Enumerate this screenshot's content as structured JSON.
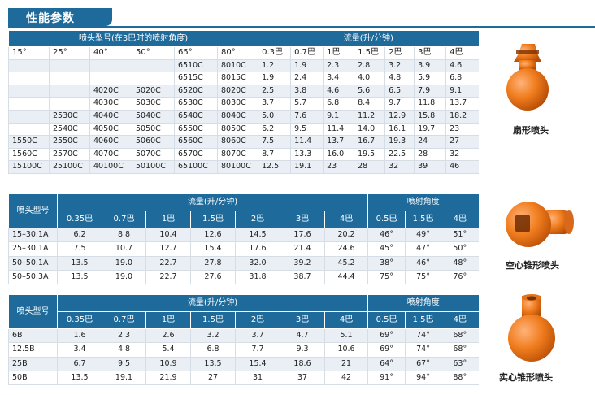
{
  "section_title": "性能参数",
  "table1": {
    "group_headers": [
      "喷头型号(在3巴时的喷射角度)",
      "流量(升/分钟)"
    ],
    "column_headers": [
      "15°",
      "25°",
      "40°",
      "50°",
      "65°",
      "80°",
      "0.3巴",
      "0.7巴",
      "1巴",
      "1.5巴",
      "2巴",
      "3巴",
      "4巴"
    ],
    "rows": [
      [
        "",
        "",
        "",
        "",
        "6510C",
        "8010C",
        "1.2",
        "1.9",
        "2.3",
        "2.8",
        "3.2",
        "3.9",
        "4.6"
      ],
      [
        "",
        "",
        "",
        "",
        "6515C",
        "8015C",
        "1.9",
        "2.4",
        "3.4",
        "4.0",
        "4.8",
        "5.9",
        "6.8"
      ],
      [
        "",
        "",
        "4020C",
        "5020C",
        "6520C",
        "8020C",
        "2.5",
        "3.8",
        "4.6",
        "5.6",
        "6.5",
        "7.9",
        "9.1"
      ],
      [
        "",
        "",
        "4030C",
        "5030C",
        "6530C",
        "8030C",
        "3.7",
        "5.7",
        "6.8",
        "8.4",
        "9.7",
        "11.8",
        "13.7"
      ],
      [
        "",
        "2530C",
        "4040C",
        "5040C",
        "6540C",
        "8040C",
        "5.0",
        "7.6",
        "9.1",
        "11.2",
        "12.9",
        "15.8",
        "18.2"
      ],
      [
        "",
        "2540C",
        "4050C",
        "5050C",
        "6550C",
        "8050C",
        "6.2",
        "9.5",
        "11.4",
        "14.0",
        "16.1",
        "19.7",
        "23"
      ],
      [
        "1550C",
        "2550C",
        "4060C",
        "5060C",
        "6560C",
        "8060C",
        "7.5",
        "11.4",
        "13.7",
        "16.7",
        "19.3",
        "24",
        "27"
      ],
      [
        "1560C",
        "2570C",
        "4070C",
        "5070C",
        "6570C",
        "8070C",
        "8.7",
        "13.3",
        "16.0",
        "19.5",
        "22.5",
        "28",
        "32"
      ],
      [
        "15100C",
        "25100C",
        "40100C",
        "50100C",
        "65100C",
        "80100C",
        "12.5",
        "19.1",
        "23",
        "28",
        "32",
        "39",
        "46"
      ]
    ]
  },
  "table2": {
    "model_header": "喷头型号",
    "flow_header": "流量(升/分钟)",
    "angle_header": "喷射角度",
    "flow_columns": [
      "0.35巴",
      "0.7巴",
      "1巴",
      "1.5巴",
      "2巴",
      "3巴",
      "4巴"
    ],
    "angle_columns": [
      "0.5巴",
      "1.5巴",
      "4巴"
    ],
    "rows": [
      [
        "15–30.1A",
        "6.2",
        "8.8",
        "10.4",
        "12.6",
        "14.5",
        "17.6",
        "20.2",
        "46°",
        "49°",
        "51°"
      ],
      [
        "25–30.1A",
        "7.5",
        "10.7",
        "12.7",
        "15.4",
        "17.6",
        "21.4",
        "24.6",
        "45°",
        "47°",
        "50°"
      ],
      [
        "50–50.1A",
        "13.5",
        "19.0",
        "22.7",
        "27.8",
        "32.0",
        "39.2",
        "45.2",
        "38°",
        "46°",
        "48°"
      ],
      [
        "50–50.3A",
        "13.5",
        "19.0",
        "22.7",
        "27.6",
        "31.8",
        "38.7",
        "44.4",
        "75°",
        "75°",
        "76°"
      ]
    ]
  },
  "table3": {
    "model_header": "喷头型号",
    "flow_header": "流量(升/分钟)",
    "angle_header": "喷射角度",
    "flow_columns": [
      "0.35巴",
      "0.7巴",
      "1巴",
      "1.5巴",
      "2巴",
      "3巴",
      "4巴"
    ],
    "angle_columns": [
      "0.5巴",
      "1.5巴",
      "4巴"
    ],
    "rows": [
      [
        "6B",
        "1.6",
        "2.3",
        "2.6",
        "3.2",
        "3.7",
        "4.7",
        "5.1",
        "69°",
        "74°",
        "68°"
      ],
      [
        "12.5B",
        "3.4",
        "4.8",
        "5.4",
        "6.8",
        "7.7",
        "9.3",
        "10.6",
        "69°",
        "74°",
        "68°"
      ],
      [
        "25B",
        "6.7",
        "9.5",
        "10.9",
        "13.5",
        "15.4",
        "18.6",
        "21",
        "64°",
        "67°",
        "63°"
      ],
      [
        "50B",
        "13.5",
        "19.1",
        "21.9",
        "27",
        "31",
        "37",
        "42",
        "91°",
        "94°",
        "88°"
      ]
    ]
  },
  "products": [
    {
      "caption": "扇形喷头",
      "icon": "fan-nozzle-icon"
    },
    {
      "caption": "空心锥形喷头",
      "icon": "hollow-cone-nozzle-icon"
    },
    {
      "caption": "实心锥形喷头",
      "icon": "solid-cone-nozzle-icon"
    }
  ],
  "colors": {
    "header": "#1d6a9b",
    "zebra": "#e9eff5",
    "nozzle": "#f07d1e"
  }
}
